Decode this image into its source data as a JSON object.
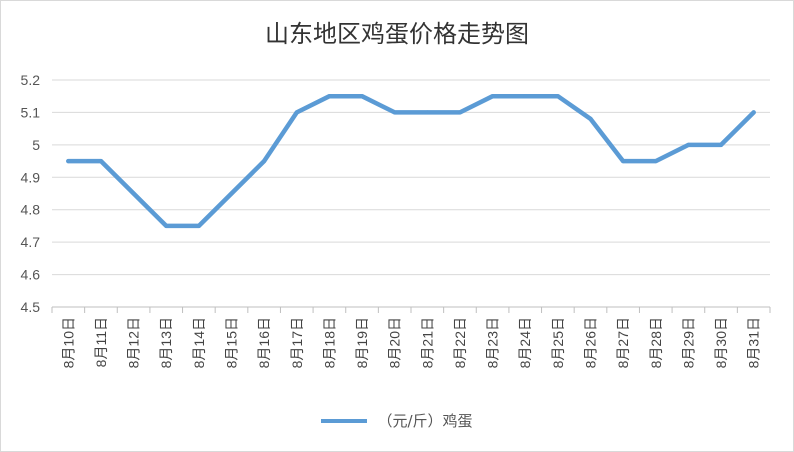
{
  "chart_data": {
    "type": "line",
    "title": "山东地区鸡蛋价格走势图",
    "categories": [
      "8月10日",
      "8月11日",
      "8月12日",
      "8月13日",
      "8月14日",
      "8月15日",
      "8月16日",
      "8月17日",
      "8月18日",
      "8月19日",
      "8月20日",
      "8月21日",
      "8月22日",
      "8月23日",
      "8月24日",
      "8月25日",
      "8月26日",
      "8月27日",
      "8月28日",
      "8月29日",
      "8月30日",
      "8月31日"
    ],
    "series": [
      {
        "name": "（元/斤）鸡蛋",
        "color": "#5b9bd5",
        "values": [
          4.95,
          4.95,
          4.85,
          4.75,
          4.75,
          4.85,
          4.95,
          5.1,
          5.15,
          5.15,
          5.1,
          5.1,
          5.1,
          5.15,
          5.15,
          5.15,
          5.08,
          4.95,
          4.95,
          5.0,
          5.0,
          5.1
        ]
      }
    ],
    "yticks": [
      "4.5",
      "4.6",
      "4.7",
      "4.8",
      "4.9",
      "5",
      "5.1",
      "5.2"
    ],
    "ylim": [
      4.5,
      5.2
    ],
    "grid": true,
    "legend": "bottom"
  }
}
